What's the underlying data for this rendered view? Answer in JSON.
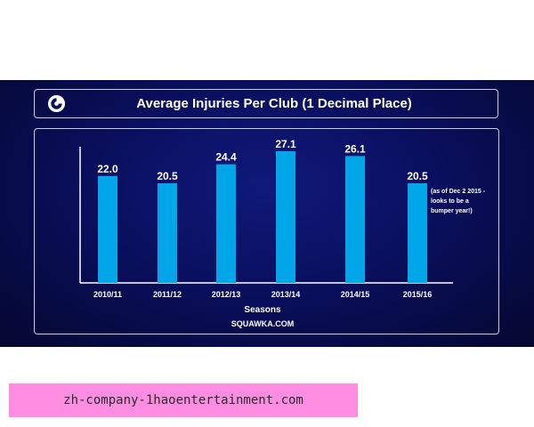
{
  "banner": {
    "text": "zh-company-1haoentertainment.com"
  },
  "colors": {
    "bar": "#00a6e8",
    "background": "#0a0f5e",
    "text": "#ffffff"
  },
  "logo": {
    "icon": "squawka-logo-icon"
  },
  "chart_data": {
    "type": "bar",
    "title": "Average Injuries Per Club (1 Decimal Place)",
    "xlabel": "Seasons",
    "ylabel": "",
    "categories": [
      "2010/11",
      "2011/12",
      "2012/13",
      "2013/14",
      "2014/15",
      "2015/16"
    ],
    "values": [
      22.0,
      20.5,
      24.4,
      27.1,
      26.1,
      20.5
    ],
    "data_labels": [
      "22.0",
      "20.5",
      "24.4",
      "27.1",
      "26.1",
      "20.5"
    ],
    "ylim": [
      0,
      28
    ],
    "grid": false,
    "legend": "none",
    "annotations": [
      {
        "category": "2015/16",
        "lines": [
          "(as of Dec 2 2015 -",
          "looks to be a",
          "bumper year!)"
        ]
      }
    ],
    "source": "SQUAWKA.COM"
  }
}
